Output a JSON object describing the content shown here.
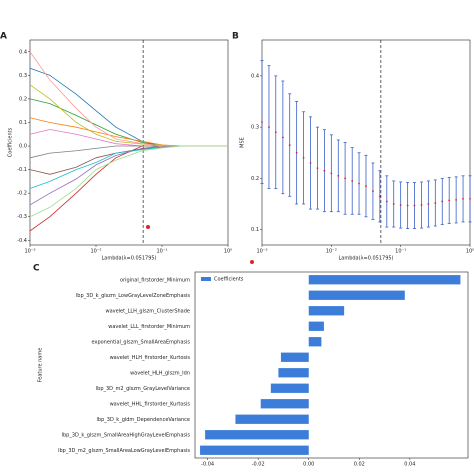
{
  "chart_data": [
    {
      "type": "line",
      "panel_label": "A",
      "xlabel": "Lambda(λ=0.051795)",
      "ylabel": "Coefficients",
      "xscale": "log",
      "xlim": [
        0.001,
        1
      ],
      "ylim": [
        -0.42,
        0.45
      ],
      "xticks": [
        {
          "value": 0.001,
          "label": "10⁻³"
        },
        {
          "value": 0.01,
          "label": "10⁻²"
        },
        {
          "value": 0.1,
          "label": "10⁻¹"
        },
        {
          "value": 1,
          "label": "10⁰"
        }
      ],
      "yticks": [
        -0.4,
        -0.3,
        -0.2,
        -0.1,
        {
          "value": 0,
          "label": "0.0"
        },
        0.1,
        0.2,
        0.3,
        0.4
      ],
      "vline": 0.051795,
      "x": [
        0.001,
        0.002,
        0.005,
        0.01,
        0.02,
        0.05,
        0.1,
        0.2,
        0.5,
        1
      ],
      "series": [
        {
          "color": "#1f77b4",
          "values": [
            0.33,
            0.3,
            0.22,
            0.15,
            0.08,
            0.02,
            0,
            0,
            0,
            0
          ]
        },
        {
          "color": "#d62728",
          "values": [
            -0.36,
            -0.3,
            -0.2,
            -0.12,
            -0.05,
            0,
            0,
            0,
            0,
            0
          ]
        },
        {
          "color": "#2ca02c",
          "values": [
            0.2,
            0.18,
            0.13,
            0.09,
            0.05,
            0.015,
            0,
            0,
            0,
            0
          ]
        },
        {
          "color": "#9467bd",
          "values": [
            -0.25,
            -0.2,
            -0.14,
            -0.08,
            -0.04,
            -0.01,
            0,
            0,
            0,
            0
          ]
        },
        {
          "color": "#ff7f0e",
          "values": [
            0.12,
            0.1,
            0.08,
            0.06,
            0.04,
            0.02,
            0.005,
            0,
            0,
            0
          ]
        },
        {
          "color": "#8c564b",
          "values": [
            -0.1,
            -0.12,
            -0.09,
            -0.05,
            -0.03,
            -0.012,
            -0.004,
            0,
            0,
            0
          ]
        },
        {
          "color": "#e377c2",
          "values": [
            0.05,
            0.07,
            0.05,
            0.03,
            0.01,
            0,
            0,
            0,
            0,
            0
          ]
        },
        {
          "color": "#17becf",
          "values": [
            -0.18,
            -0.15,
            -0.1,
            -0.07,
            -0.03,
            -0.015,
            -0.005,
            0,
            0,
            0
          ]
        },
        {
          "color": "#bcbd22",
          "values": [
            0.26,
            0.2,
            0.1,
            0.05,
            0.02,
            0.008,
            0.003,
            0,
            0,
            0
          ]
        },
        {
          "color": "#7f7f7f",
          "values": [
            -0.05,
            -0.03,
            -0.02,
            -0.01,
            0,
            0,
            0,
            0,
            0,
            0
          ]
        },
        {
          "color": "#ff9896",
          "values": [
            0.4,
            0.28,
            0.16,
            0.08,
            0.03,
            0.01,
            0,
            0,
            0,
            0
          ]
        },
        {
          "color": "#98df8a",
          "values": [
            -0.3,
            -0.26,
            -0.18,
            -0.1,
            -0.06,
            -0.02,
            -0.008,
            0,
            0,
            0
          ]
        }
      ]
    },
    {
      "type": "errorbar",
      "panel_label": "B",
      "xlabel": "Lambda(λ=0.051795)",
      "ylabel": "MSE",
      "xscale": "log",
      "xlim": [
        0.001,
        1
      ],
      "ylim": [
        0.07,
        0.47
      ],
      "xticks": [
        {
          "value": 0.001,
          "label": "10⁻³"
        },
        {
          "value": 0.01,
          "label": "10⁻²"
        },
        {
          "value": 0.1,
          "label": "10⁻¹"
        },
        {
          "value": 1,
          "label": "10⁰"
        }
      ],
      "yticks": [
        0.1,
        0.2,
        0.3,
        0.4
      ],
      "vline": 0.051795,
      "color": "#d62728",
      "error_color": "#3a5fc8",
      "x": [
        0.001,
        0.00126,
        0.00158,
        0.002,
        0.00251,
        0.00316,
        0.00398,
        0.00501,
        0.00631,
        0.00794,
        0.01,
        0.0126,
        0.0158,
        0.02,
        0.0251,
        0.0316,
        0.0398,
        0.0501,
        0.0631,
        0.0794,
        0.1,
        0.126,
        0.158,
        0.2,
        0.251,
        0.316,
        0.398,
        0.501,
        0.631,
        0.794,
        1
      ],
      "values": [
        0.31,
        0.3,
        0.29,
        0.28,
        0.265,
        0.25,
        0.24,
        0.23,
        0.22,
        0.215,
        0.21,
        0.205,
        0.2,
        0.195,
        0.19,
        0.185,
        0.175,
        0.165,
        0.155,
        0.15,
        0.148,
        0.147,
        0.147,
        0.148,
        0.15,
        0.152,
        0.155,
        0.157,
        0.158,
        0.16,
        0.16
      ],
      "errors": [
        0.12,
        0.12,
        0.11,
        0.11,
        0.1,
        0.1,
        0.09,
        0.09,
        0.08,
        0.08,
        0.075,
        0.07,
        0.07,
        0.065,
        0.06,
        0.06,
        0.055,
        0.05,
        0.05,
        0.045,
        0.045,
        0.045,
        0.045,
        0.045,
        0.045,
        0.045,
        0.045,
        0.045,
        0.045,
        0.045,
        0.045
      ]
    },
    {
      "type": "bar",
      "orientation": "horizontal",
      "panel_label": "C",
      "ylabel": "Feature name",
      "xlim": [
        -0.045,
        0.063
      ],
      "xticks": [
        -0.04,
        -0.02,
        {
          "value": 0,
          "label": "0.00"
        },
        0.02,
        0.04
      ],
      "legend": "upper left",
      "categories": [
        "original_firstorder_Minimum",
        "lbp_3D_k_glszm_LowGrayLevelZoneEmphasis",
        "wavelet_LLH_glszm_ClusterShade",
        "wavelet_LLL_firstorder_Minimum",
        "exponential_glszm_SmallAreaEmphasis",
        "wavelet_HLH_firstorder_Kurtosis",
        "wavelet_HLH_glszm_Idn",
        "lbp_3D_m2_glszm_GrayLevelVariance",
        "wavelet_HHL_firstorder_Kurtosis",
        "lbp_3D_k_gldm_DependenceVariance",
        "lbp_3D_k_glszm_SmallAreaHighGrayLevelEmphasis",
        "lbp_3D_m2_glszm_SmallAreaLowGrayLevelEmphasis"
      ],
      "series": [
        {
          "name": "Coefficients",
          "color": "#3b7dd8",
          "values": [
            0.06,
            0.038,
            0.014,
            0.006,
            0.005,
            -0.011,
            -0.012,
            -0.015,
            -0.019,
            -0.029,
            -0.041,
            -0.043
          ]
        }
      ]
    }
  ]
}
